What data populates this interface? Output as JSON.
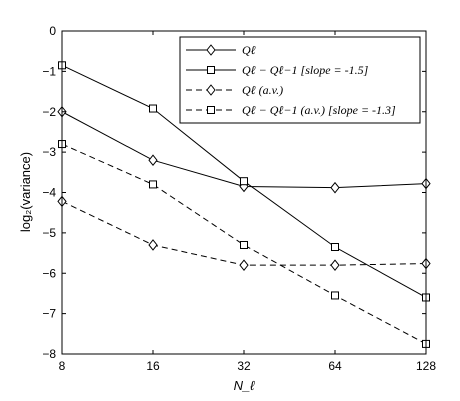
{
  "chart_data": {
    "type": "line",
    "title": "",
    "xlabel": "N_ℓ",
    "ylabel": "log₂(variance)",
    "x": [
      8,
      16,
      32,
      64,
      128
    ],
    "x_tick_labels": [
      "8",
      "16",
      "32",
      "64",
      "128"
    ],
    "x_scale": "log2",
    "xlim": [
      8,
      128
    ],
    "ylim": [
      -8,
      0
    ],
    "y_ticks": [
      0,
      -1,
      -2,
      -3,
      -4,
      -5,
      -6,
      -7,
      -8
    ],
    "y_tick_labels": [
      "0",
      "−1",
      "−2",
      "−3",
      "−4",
      "−5",
      "−6",
      "−7",
      "−8"
    ],
    "grid": false,
    "legend_position": "top-right",
    "series": [
      {
        "name": "Qℓ",
        "values": [
          -2.0,
          -3.2,
          -3.85,
          -3.88,
          -3.78
        ],
        "marker": "diamond",
        "dash": "solid",
        "color": "#000000"
      },
      {
        "name": "Qℓ − Qℓ−1 [slope = -1.5]",
        "values": [
          -0.85,
          -1.92,
          -3.72,
          -5.35,
          -6.6
        ],
        "marker": "square",
        "dash": "solid",
        "color": "#000000"
      },
      {
        "name": "Qℓ (a.v.)",
        "values": [
          -4.22,
          -5.3,
          -5.8,
          -5.8,
          -5.76
        ],
        "marker": "diamond",
        "dash": "dashed",
        "color": "#000000"
      },
      {
        "name": "Qℓ − Qℓ−1 (a.v.) [slope = -1.3]",
        "values": [
          -2.8,
          -3.8,
          -5.3,
          -6.55,
          -7.75
        ],
        "marker": "square",
        "dash": "dashed",
        "color": "#000000"
      }
    ]
  }
}
